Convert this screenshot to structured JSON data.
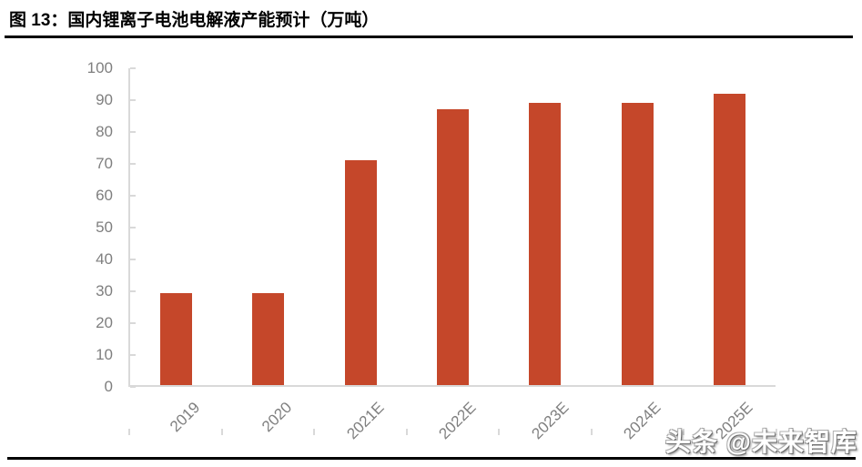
{
  "figure": {
    "title": "图 13：国内锂离子电池电解液产能预计（万吨）",
    "watermark": "头条 @未来智库"
  },
  "chart_data": {
    "type": "bar",
    "title": "图 13：国内锂离子电池电解液产能预计（万吨）",
    "unit": "万吨",
    "categories": [
      "2019",
      "2020",
      "2021E",
      "2022E",
      "2023E",
      "2024E",
      "2025E"
    ],
    "values": [
      29,
      29,
      71,
      87,
      89,
      89,
      92
    ],
    "xlabel": "",
    "ylabel": "",
    "ylim": [
      0,
      100
    ],
    "yticks": [
      0,
      10,
      20,
      30,
      40,
      50,
      60,
      70,
      80,
      90,
      100
    ],
    "grid": false,
    "legend_position": "none",
    "x_tick_rotation_deg": 45,
    "colors": {
      "bar": "#C5472A",
      "axis_line": "#D9D9D9",
      "tick_label": "#7F7F7F",
      "title": "#000000",
      "rule": "#000000",
      "watermark_fill": "#FFFFFF",
      "watermark_outline": "#6E6E6E"
    }
  }
}
